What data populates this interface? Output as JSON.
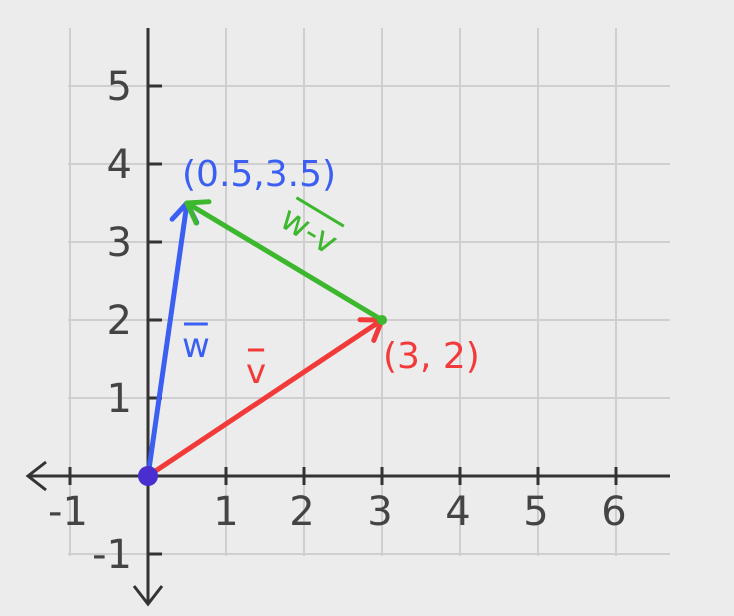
{
  "axes": {
    "x_range": [
      -1,
      6
    ],
    "y_range": [
      -1,
      5
    ],
    "x_ticks": [
      "-1",
      "1",
      "2",
      "3",
      "4",
      "5",
      "6"
    ],
    "y_ticks": [
      "-1",
      "1",
      "2",
      "3",
      "4",
      "5"
    ],
    "grid": true
  },
  "points": {
    "w_tip": {
      "x": 0.5,
      "y": 3.5,
      "label": "(0.5,3.5)"
    },
    "v_tip": {
      "x": 3,
      "y": 2,
      "label": "(3, 2)"
    },
    "origin": {
      "x": 0,
      "y": 0
    }
  },
  "vectors": {
    "w": {
      "label": "w",
      "color": "#3a5ff2"
    },
    "v": {
      "label": "v",
      "color": "#f23a3a"
    },
    "w_minus_v": {
      "label": "w-v",
      "color": "#3db82e"
    }
  },
  "colors": {
    "background": "#ececec",
    "grid": "#cfcfcf",
    "axis": "#333333",
    "origin_dot": "#4a2ed0"
  }
}
